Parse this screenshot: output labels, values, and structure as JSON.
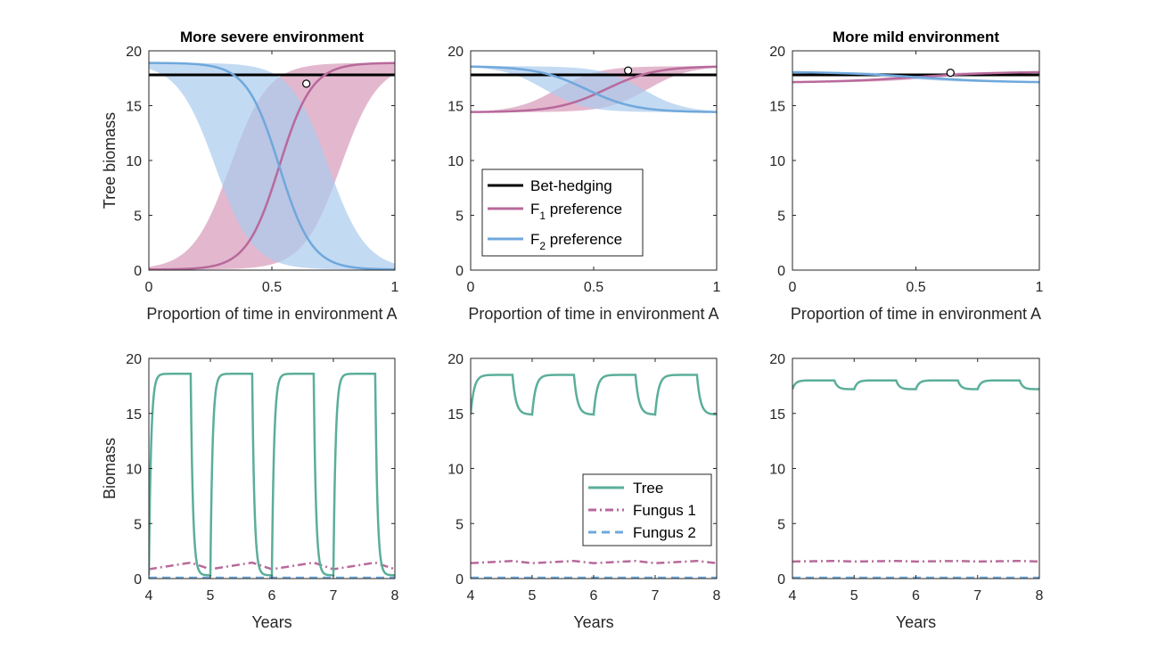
{
  "colors": {
    "black": "#000000",
    "pink": "#B8699B",
    "blue": "#6FA8DC",
    "teal": "#5BAE9A",
    "pink_fill": "#D9A0BE",
    "blue_fill": "#A9CBEE",
    "overlap_fill": "#A8A6D6"
  },
  "chart_data": [
    {
      "id": "p1",
      "type": "line",
      "title": "More severe environment",
      "xlabel": "Proportion of time in environment A",
      "ylabel": "Tree biomass",
      "xlim": [
        0,
        1
      ],
      "ylim": [
        0,
        20
      ],
      "xticks": [
        0,
        0.5,
        1
      ],
      "xtick_labels": [
        "0",
        "0.5",
        "1"
      ],
      "yticks": [
        0,
        5,
        10,
        15,
        20
      ],
      "ytick_labels": [
        "0",
        "5",
        "10",
        "15",
        "20"
      ],
      "bet_hedging": 17.8,
      "f1": {
        "lo": 0.05,
        "hi": 18.9,
        "mid": 0.53,
        "k": 15
      },
      "f2": {
        "lo": 0.05,
        "hi": 18.9,
        "mid": 0.53,
        "k": 15
      },
      "band1": {
        "lower_mid": 0.78,
        "upper_mid": 0.33,
        "k": 13
      },
      "band2": {
        "lower_mid": 0.73,
        "upper_mid": 0.27,
        "k": 13
      },
      "marker": {
        "x": 0.64,
        "y": 17.0
      }
    },
    {
      "id": "p2",
      "type": "line",
      "title": "",
      "xlabel": "Proportion of time in environment A",
      "ylabel": "",
      "xlim": [
        0,
        1
      ],
      "ylim": [
        0,
        20
      ],
      "xticks": [
        0,
        0.5,
        1
      ],
      "xtick_labels": [
        "0",
        "0.5",
        "1"
      ],
      "yticks": [
        0,
        5,
        10,
        15,
        20
      ],
      "ytick_labels": [
        "0",
        "5",
        "10",
        "15",
        "20"
      ],
      "bet_hedging": 17.8,
      "f1": {
        "lo": 14.4,
        "hi": 18.6,
        "mid": 0.55,
        "k": 10
      },
      "f2": {
        "lo": 14.4,
        "hi": 18.6,
        "mid": 0.47,
        "k": 10
      },
      "band1": {
        "lower_mid": 0.72,
        "upper_mid": 0.35,
        "k": 12
      },
      "band2": {
        "lower_mid": 0.7,
        "upper_mid": 0.3,
        "k": 12
      },
      "marker": {
        "x": 0.64,
        "y": 18.2
      },
      "legend": {
        "entries": [
          {
            "label": "Bet-hedging",
            "color_key": "black"
          },
          {
            "label": "F",
            "sub": "1",
            "suffix": " preference",
            "color_key": "pink"
          },
          {
            "label": "F",
            "sub": "2",
            "suffix": " preference",
            "color_key": "blue"
          }
        ]
      }
    },
    {
      "id": "p3",
      "type": "line",
      "title": "More mild environment",
      "xlabel": "Proportion of time in environment A",
      "ylabel": "",
      "xlim": [
        0,
        1
      ],
      "ylim": [
        0,
        20
      ],
      "xticks": [
        0,
        0.5,
        1
      ],
      "xtick_labels": [
        "0",
        "0.5",
        "1"
      ],
      "yticks": [
        0,
        5,
        10,
        15,
        20
      ],
      "ytick_labels": [
        "0",
        "5",
        "10",
        "15",
        "20"
      ],
      "bet_hedging": 17.8,
      "f1": {
        "lo": 17.1,
        "hi": 18.1,
        "mid": 0.5,
        "k": 6
      },
      "f2": {
        "lo": 17.1,
        "hi": 18.1,
        "mid": 0.5,
        "k": 6
      },
      "band1": {
        "lower_mid": 0.6,
        "upper_mid": 0.4,
        "k": 8
      },
      "band2": {
        "lower_mid": 0.6,
        "upper_mid": 0.4,
        "k": 8
      },
      "marker": {
        "x": 0.64,
        "y": 18.0
      }
    },
    {
      "id": "p4",
      "type": "line",
      "title": "",
      "xlabel": "Years",
      "ylabel": "Biomass",
      "xlim": [
        4,
        8
      ],
      "ylim": [
        0,
        20
      ],
      "xticks": [
        4,
        5,
        6,
        7,
        8
      ],
      "xtick_labels": [
        "4",
        "5",
        "6",
        "7",
        "8"
      ],
      "yticks": [
        0,
        5,
        10,
        15,
        20
      ],
      "ytick_labels": [
        "0",
        "5",
        "10",
        "15",
        "20"
      ],
      "tree": {
        "min": 0.3,
        "max": 18.6,
        "switch": 0.68,
        "rate_up": 28,
        "rate_down": 28
      },
      "fungus1": {
        "min": 0.85,
        "max": 1.45,
        "switch": 0.68
      },
      "fungus2": 0.08
    },
    {
      "id": "p5",
      "type": "line",
      "title": "",
      "xlabel": "Years",
      "ylabel": "",
      "xlim": [
        4,
        8
      ],
      "ylim": [
        0,
        20
      ],
      "xticks": [
        4,
        5,
        6,
        7,
        8
      ],
      "xtick_labels": [
        "4",
        "5",
        "6",
        "7",
        "8"
      ],
      "yticks": [
        0,
        5,
        10,
        15,
        20
      ],
      "ytick_labels": [
        "0",
        "5",
        "10",
        "15",
        "20"
      ],
      "tree": {
        "min": 14.9,
        "max": 18.5,
        "switch": 0.68,
        "rate_up": 18,
        "rate_down": 18
      },
      "fungus1": {
        "min": 1.4,
        "max": 1.6,
        "switch": 0.68
      },
      "fungus2": 0.08,
      "legend": {
        "entries": [
          {
            "label": "Tree",
            "color_key": "teal",
            "style": "solid"
          },
          {
            "label": "Fungus 1",
            "color_key": "pink",
            "style": "dashdot"
          },
          {
            "label": "Fungus 2",
            "color_key": "blue",
            "style": "dashed"
          }
        ]
      }
    },
    {
      "id": "p6",
      "type": "line",
      "title": "",
      "xlabel": "Years",
      "ylabel": "",
      "xlim": [
        4,
        8
      ],
      "ylim": [
        0,
        20
      ],
      "xticks": [
        4,
        5,
        6,
        7,
        8
      ],
      "xtick_labels": [
        "4",
        "5",
        "6",
        "7",
        "8"
      ],
      "yticks": [
        0,
        5,
        10,
        15,
        20
      ],
      "ytick_labels": [
        "0",
        "5",
        "10",
        "15",
        "20"
      ],
      "tree": {
        "min": 17.2,
        "max": 18.0,
        "switch": 0.68,
        "rate_up": 20,
        "rate_down": 20
      },
      "fungus1": {
        "min": 1.55,
        "max": 1.6,
        "switch": 0.68
      },
      "fungus2": 0.08
    }
  ]
}
